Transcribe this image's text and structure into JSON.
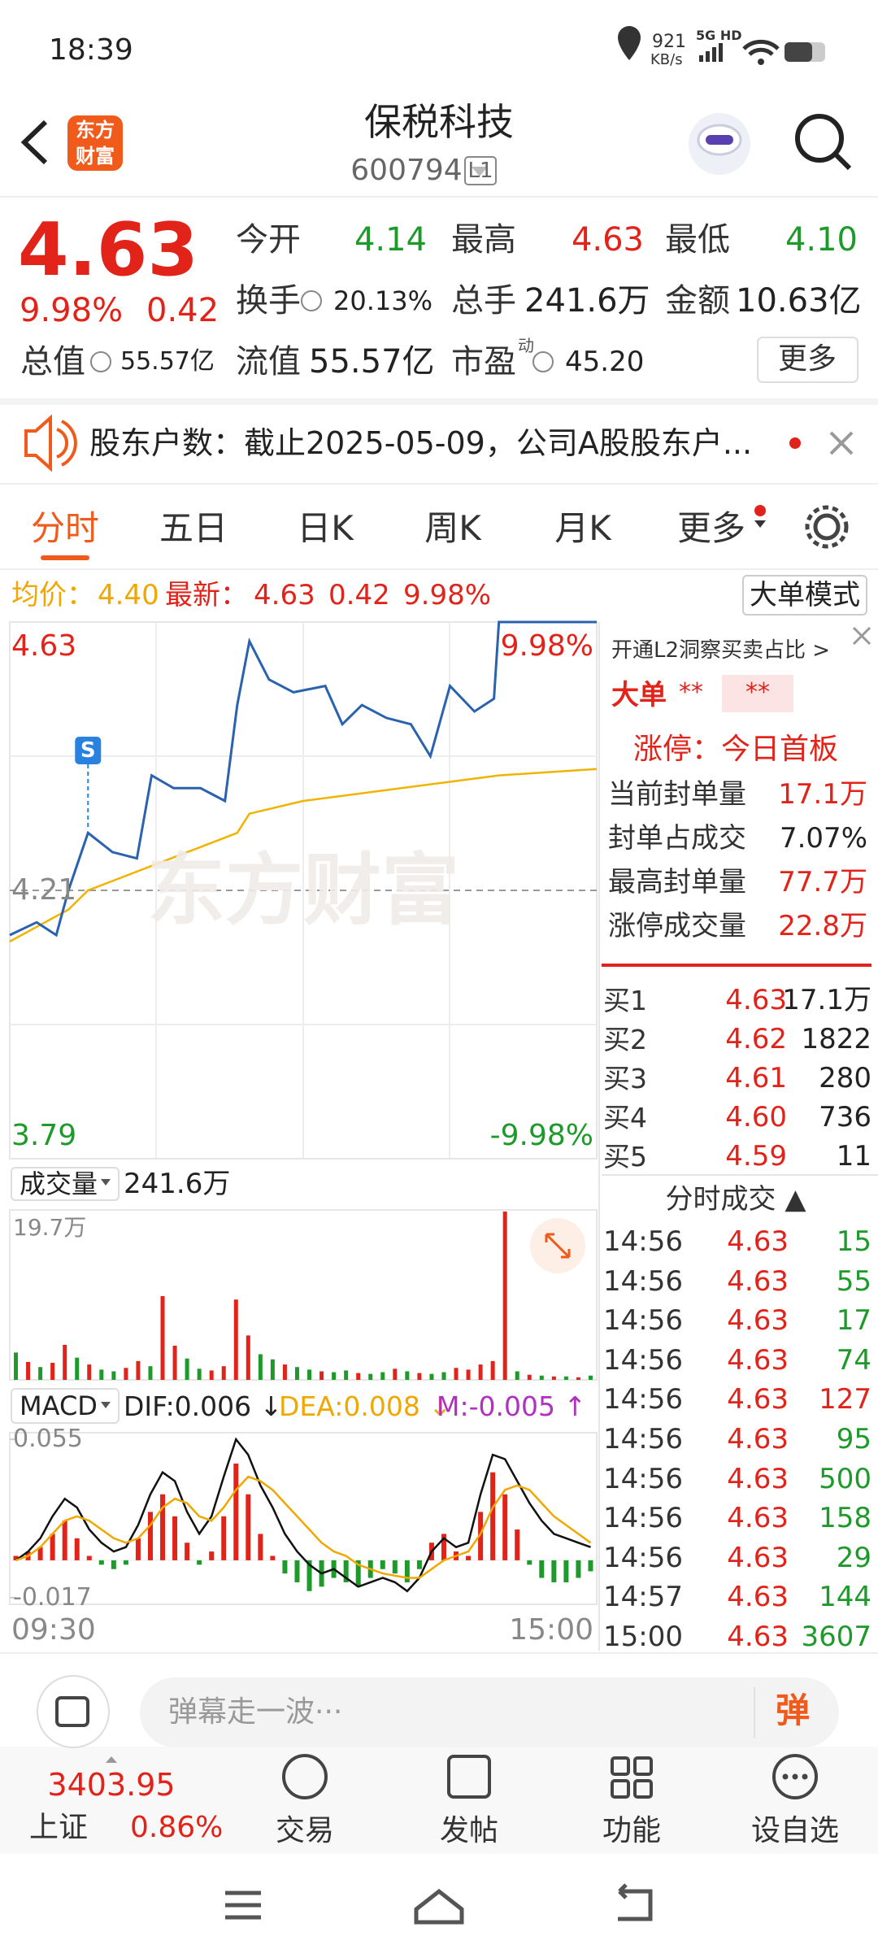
{
  "status_bar": {
    "time": "18:39",
    "net_speed": "921",
    "net_unit": "KB/s",
    "network": "5G HD"
  },
  "header": {
    "logo_top": "东方",
    "logo_bottom": "财富",
    "title": "保税科技",
    "code": "600794",
    "level": "L1"
  },
  "quote": {
    "price": "4.63",
    "change_pct": "9.98%",
    "change": "0.42",
    "grid": [
      {
        "label": "今开",
        "value": "4.14",
        "tone": "down"
      },
      {
        "label": "最高",
        "value": "4.63",
        "tone": "up"
      },
      {
        "label": "最低",
        "value": "4.10",
        "tone": "down"
      },
      {
        "label": "换手",
        "value": "20.13%",
        "tone": "flat"
      },
      {
        "label": "总手",
        "value": "241.6万",
        "tone": "flat"
      },
      {
        "label": "金额",
        "value": "10.63亿",
        "tone": "flat"
      },
      {
        "label": "总值",
        "value": "55.57亿",
        "tone": "flat"
      },
      {
        "label": "流值",
        "value": "55.57亿",
        "tone": "flat"
      },
      {
        "label": "市盈",
        "value": "45.20",
        "tone": "flat"
      }
    ],
    "pe_superscript": "动",
    "more": "更多"
  },
  "notice": {
    "text": "股东户数：截止2025-05-09，公司A股股东户..."
  },
  "tabs": [
    "分时",
    "五日",
    "日K",
    "周K",
    "月K",
    "更多"
  ],
  "summary": {
    "avg_label": "均价：",
    "avg": "4.40",
    "latest_label": "最新：",
    "latest": "4.63",
    "change": "0.42",
    "change_pct": "9.98%",
    "mode_button": "大单模式"
  },
  "intraday": {
    "xlim": [
      0,
      240
    ],
    "ylim": [
      3.79,
      4.63
    ],
    "yticks": [
      3.79,
      4.21,
      4.63
    ],
    "top_pct": "9.98%",
    "bottom_pct": "-9.98%",
    "watermark": "东方财富",
    "signal": "S",
    "signal_x": 32,
    "price": {
      "color": "#2a62b0",
      "x": [
        0,
        11,
        19,
        24,
        32,
        42,
        52,
        58,
        67,
        78,
        88,
        93,
        98,
        106,
        116,
        129,
        136,
        144,
        154,
        164,
        172,
        180,
        190,
        198,
        200,
        240
      ],
      "values": [
        4.14,
        4.16,
        4.14,
        4.21,
        4.3,
        4.27,
        4.26,
        4.39,
        4.37,
        4.37,
        4.35,
        4.5,
        4.6,
        4.54,
        4.52,
        4.53,
        4.47,
        4.5,
        4.48,
        4.47,
        4.42,
        4.53,
        4.49,
        4.51,
        4.63,
        4.63
      ]
    },
    "avg": {
      "color": "#f0b400",
      "x": [
        0,
        24,
        32,
        93,
        98,
        120,
        200,
        240
      ],
      "values": [
        4.13,
        4.18,
        4.21,
        4.3,
        4.33,
        4.35,
        4.39,
        4.4
      ]
    },
    "time_start": "09:30",
    "time_end": "15:00"
  },
  "volume": {
    "label": "成交量",
    "total": "241.6万",
    "ylim": [
      0,
      19.7
    ],
    "top_label": "19.7万",
    "values": [
      3.2,
      2.1,
      1.5,
      2.0,
      4.1,
      2.6,
      1.8,
      1.2,
      1.0,
      1.4,
      2.2,
      1.6,
      9.8,
      4.0,
      2.5,
      1.3,
      1.1,
      1.6,
      9.4,
      5.2,
      3.0,
      2.4,
      1.8,
      1.5,
      1.2,
      1.0,
      0.9,
      1.1,
      0.8,
      0.7,
      0.9,
      1.3,
      1.0,
      0.8,
      0.7,
      0.9,
      1.4,
      1.2,
      1.8,
      2.2,
      19.7,
      1.0,
      0.6,
      0.5,
      0.4,
      0.4,
      0.3,
      0.5
    ],
    "tones": [
      "down",
      "up",
      "down",
      "up",
      "up",
      "down",
      "up",
      "down",
      "down",
      "up",
      "up",
      "down",
      "up",
      "up",
      "down",
      "down",
      "up",
      "up",
      "up",
      "up",
      "down",
      "down",
      "up",
      "down",
      "down",
      "up",
      "down",
      "down",
      "up",
      "down",
      "down",
      "up",
      "down",
      "up",
      "down",
      "down",
      "up",
      "up",
      "up",
      "up",
      "up",
      "down",
      "up",
      "down",
      "up",
      "down",
      "up",
      "down"
    ]
  },
  "macd": {
    "label": "MACD",
    "dif_label": "DIF:0.006 ↓",
    "dea_label": "DEA:0.008 ↓",
    "m_label": "M:-0.005 ↑",
    "ylim": [
      -0.02,
      0.058
    ],
    "yticks": [
      0.055,
      -0.017
    ],
    "hist": [
      0.002,
      0.004,
      0.006,
      0.012,
      0.018,
      0.01,
      0.002,
      -0.002,
      -0.004,
      -0.002,
      0.01,
      0.022,
      0.03,
      0.02,
      0.008,
      -0.002,
      0.004,
      0.02,
      0.044,
      0.03,
      0.012,
      0.002,
      -0.006,
      -0.01,
      -0.014,
      -0.012,
      -0.008,
      -0.01,
      -0.012,
      -0.008,
      -0.004,
      -0.006,
      -0.01,
      -0.004,
      0.008,
      0.012,
      0.004,
      0.002,
      0.022,
      0.04,
      0.03,
      0.014,
      -0.002,
      -0.008,
      -0.01,
      -0.01,
      -0.008,
      -0.005
    ],
    "dif": [
      0,
      0.004,
      0.01,
      0.02,
      0.028,
      0.024,
      0.014,
      0.008,
      0.004,
      0.006,
      0.016,
      0.03,
      0.04,
      0.036,
      0.022,
      0.012,
      0.02,
      0.038,
      0.055,
      0.048,
      0.034,
      0.024,
      0.012,
      0.004,
      -0.002,
      -0.006,
      -0.004,
      -0.008,
      -0.012,
      -0.01,
      -0.008,
      -0.01,
      -0.014,
      -0.008,
      0.004,
      0.01,
      0.006,
      0.008,
      0.03,
      0.048,
      0.046,
      0.036,
      0.026,
      0.018,
      0.012,
      0.01,
      0.008,
      0.006
    ],
    "dea": [
      0,
      0.002,
      0.006,
      0.012,
      0.018,
      0.02,
      0.018,
      0.014,
      0.01,
      0.008,
      0.01,
      0.016,
      0.024,
      0.028,
      0.026,
      0.02,
      0.018,
      0.024,
      0.032,
      0.038,
      0.036,
      0.032,
      0.026,
      0.02,
      0.014,
      0.008,
      0.004,
      0.002,
      -0.002,
      -0.004,
      -0.006,
      -0.007,
      -0.008,
      -0.008,
      -0.004,
      0.0,
      0.002,
      0.004,
      0.012,
      0.024,
      0.032,
      0.034,
      0.032,
      0.026,
      0.02,
      0.016,
      0.012,
      0.008
    ]
  },
  "l2": {
    "promo": "开通L2洞察买卖占比 >",
    "big_order": "大单",
    "big_a": "**",
    "big_b": "**",
    "limit": "涨停：今日首板",
    "stats": [
      {
        "label": "当前封单量",
        "value": "17.1万",
        "tone": "up"
      },
      {
        "label": "封单占成交",
        "value": "7.07%",
        "tone": "flat"
      },
      {
        "label": "最高封单量",
        "value": "77.7万",
        "tone": "up"
      },
      {
        "label": "涨停成交量",
        "value": "22.8万",
        "tone": "up"
      }
    ]
  },
  "order_book": [
    {
      "label": "买1",
      "price": "4.63",
      "volume": "17.1万"
    },
    {
      "label": "买2",
      "price": "4.62",
      "volume": "1822"
    },
    {
      "label": "买3",
      "price": "4.61",
      "volume": "280"
    },
    {
      "label": "买4",
      "price": "4.60",
      "volume": "736"
    },
    {
      "label": "买5",
      "price": "4.59",
      "volume": "11"
    }
  ],
  "trades": {
    "title": "分时成交 ▲",
    "rows": [
      {
        "time": "14:56",
        "price": "4.63",
        "volume": "15",
        "tone": "down"
      },
      {
        "time": "14:56",
        "price": "4.63",
        "volume": "55",
        "tone": "down"
      },
      {
        "time": "14:56",
        "price": "4.63",
        "volume": "17",
        "tone": "down"
      },
      {
        "time": "14:56",
        "price": "4.63",
        "volume": "74",
        "tone": "down"
      },
      {
        "time": "14:56",
        "price": "4.63",
        "volume": "127",
        "tone": "up"
      },
      {
        "time": "14:56",
        "price": "4.63",
        "volume": "95",
        "tone": "down"
      },
      {
        "time": "14:56",
        "price": "4.63",
        "volume": "500",
        "tone": "down"
      },
      {
        "time": "14:56",
        "price": "4.63",
        "volume": "158",
        "tone": "down"
      },
      {
        "time": "14:56",
        "price": "4.63",
        "volume": "29",
        "tone": "down"
      },
      {
        "time": "14:57",
        "price": "4.63",
        "volume": "144",
        "tone": "down"
      },
      {
        "time": "15:00",
        "price": "4.63",
        "volume": "3607",
        "tone": "down"
      }
    ]
  },
  "comment": {
    "placeholder": "弹幕走一波···",
    "button": "弹"
  },
  "bottom_nav": {
    "index_value": "3403.95",
    "index_name": "上证",
    "index_change": "0.86%",
    "items": [
      "交易",
      "发帖",
      "功能",
      "设自选"
    ]
  }
}
